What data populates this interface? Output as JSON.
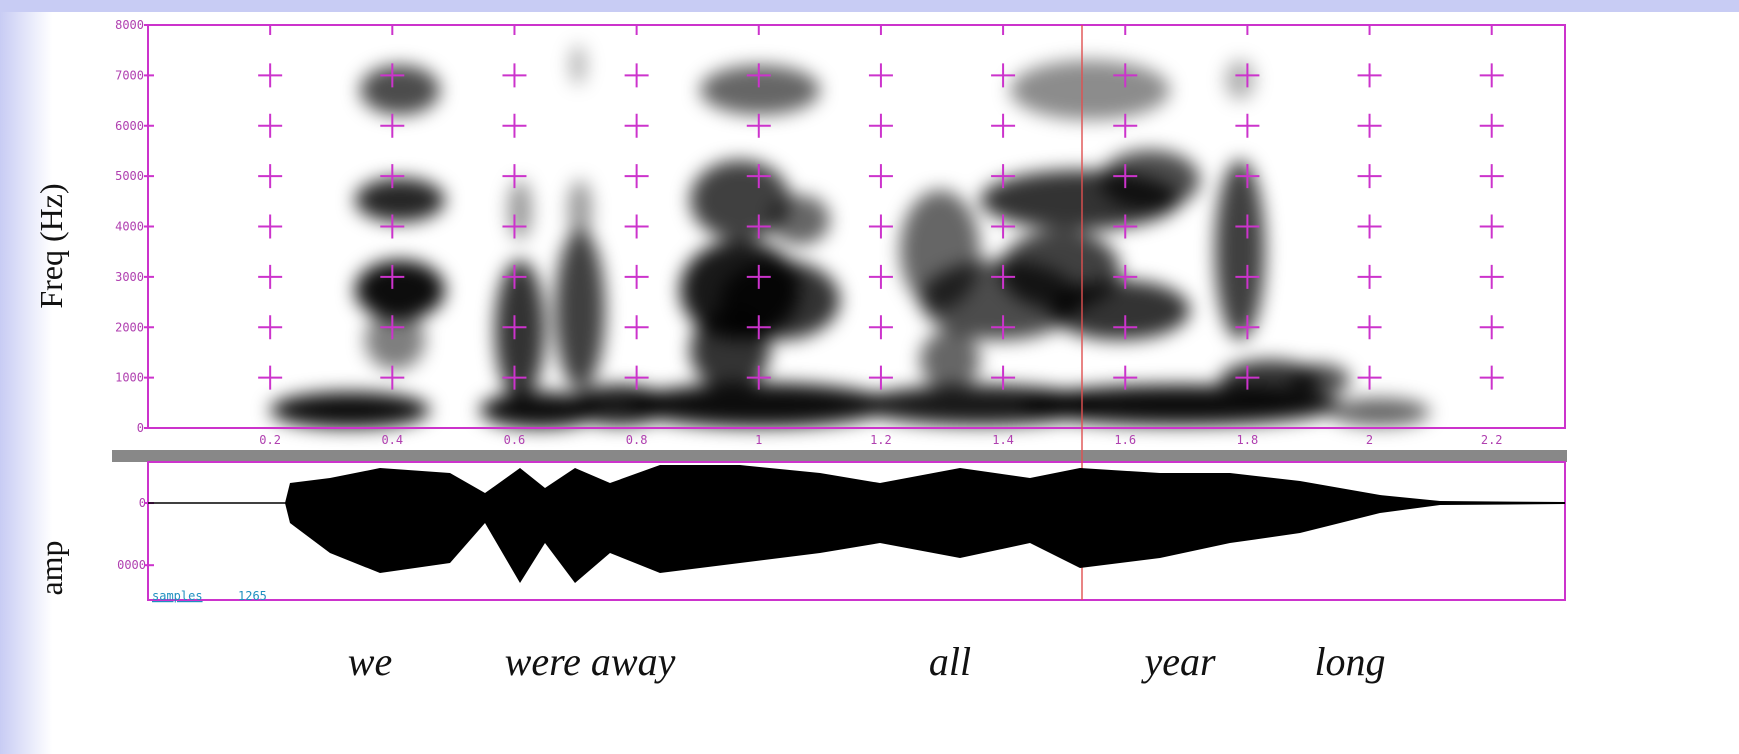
{
  "chart_data": [
    {
      "type": "spectrogram",
      "ylabel": "Freq (Hz)",
      "xlim": [
        0,
        2.32
      ],
      "xticks": [
        0.2,
        0.4,
        0.6,
        0.8,
        1,
        1.2,
        1.4,
        1.6,
        1.8,
        2,
        2.2
      ],
      "ylim": [
        0,
        8000
      ],
      "yticks": [
        0,
        1000,
        2000,
        3000,
        4000,
        5000,
        6000,
        7000,
        8000
      ],
      "grid": true,
      "color": "#cc33cc"
    },
    {
      "type": "waveform",
      "ylabel": "amp",
      "ylim": [
        -15600,
        6600
      ],
      "yticks": [
        0,
        {
          "value": -10000,
          "label": "0000"
        }
      ],
      "status_label": "samples",
      "status_value": 1265,
      "color": "#000000"
    }
  ],
  "transcript": [
    "we",
    "were away",
    "all",
    "year",
    "long"
  ]
}
